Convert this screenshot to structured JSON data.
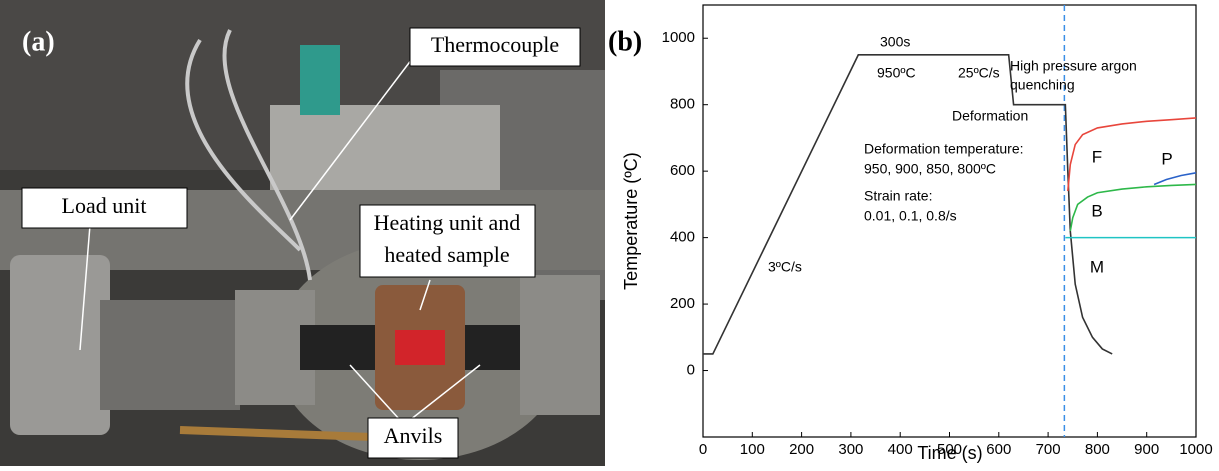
{
  "panel_a": {
    "label": "(a)",
    "annotations": [
      "Thermocouple",
      "Load unit",
      "Heating unit and",
      "heated sample",
      "Anvils"
    ]
  },
  "chart_data": {
    "type": "line",
    "panel_label": "(b)",
    "x_label": "Time (s)",
    "y_label": "Temperature (ºC)",
    "xlim": [
      0,
      1000
    ],
    "ylim": [
      -200,
      1100
    ],
    "xticks": [
      0,
      100,
      200,
      300,
      400,
      500,
      600,
      700,
      800,
      900,
      1000
    ],
    "yticks": [
      0,
      200,
      400,
      600,
      800,
      1000
    ],
    "series": [
      {
        "color": "#333333",
        "x": [
          0,
          20,
          315,
          620,
          630,
          735,
          740,
          745,
          755,
          770,
          790,
          810,
          830
        ],
        "values": [
          50,
          50,
          950,
          950,
          800,
          800,
          600,
          420,
          260,
          160,
          100,
          65,
          50
        ]
      },
      {
        "color": "#e8463c",
        "x": [
          740,
          745,
          755,
          770,
          800,
          850,
          900,
          950,
          1000
        ],
        "values": [
          540,
          620,
          680,
          710,
          730,
          742,
          750,
          755,
          760
        ]
      },
      {
        "color": "#2eb84a",
        "x": [
          745,
          750,
          760,
          780,
          800,
          850,
          900,
          950,
          1000
        ],
        "values": [
          420,
          460,
          500,
          522,
          535,
          546,
          553,
          557,
          560
        ]
      },
      {
        "color": "#2a62c9",
        "x": [
          915,
          940,
          970,
          1000
        ],
        "values": [
          560,
          575,
          587,
          595
        ]
      },
      {
        "color": "#1fc4c4",
        "x": [
          735,
          1000
        ],
        "values": [
          400,
          400
        ]
      }
    ],
    "vline": {
      "x": 733,
      "color": "#3a8ee6"
    },
    "annotations": [
      "300s",
      "950ºC",
      "25ºC/s",
      "Deformation",
      "High pressure argon",
      "quenching",
      "Deformation temperature:",
      "950, 900, 850, 800ºC",
      "Strain rate:",
      "0.01, 0.1, 0.8/s",
      "3ºC/s",
      "F",
      "P",
      "B",
      "M"
    ]
  }
}
